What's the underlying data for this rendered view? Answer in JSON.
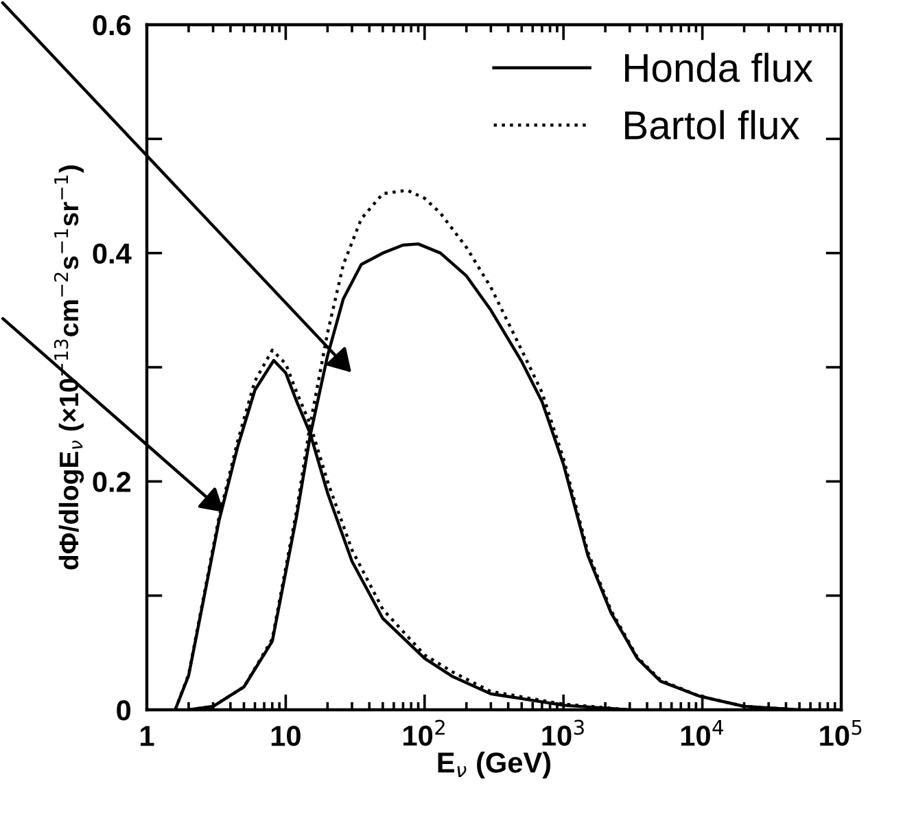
{
  "chart_data": {
    "type": "line",
    "xlabel": "E$_{ν}$ (GeV)",
    "ylabel": "dΦ/dlogE$_{ν}$ (×10$^{−13}$cm$^{−2}$s$^{−1}$sr$^{−1}$)",
    "log": "x",
    "xlim": [
      1,
      100000
    ],
    "ylim": [
      0,
      0.6
    ],
    "xticks": [
      1,
      10,
      {
        "value": 100,
        "label": "10$^{2}$"
      },
      {
        "value": 1000,
        "label": "10$^{3}$"
      },
      {
        "value": 10000,
        "label": "10$^{4}$"
      },
      {
        "value": 100000,
        "label": "10$^{5}$"
      }
    ],
    "yticks": [
      0,
      {
        "value": 0.1,
        "label": null
      },
      0.2,
      {
        "value": 0.3,
        "label": null
      },
      0.4,
      {
        "value": 0.5,
        "label": null
      },
      0.6
    ],
    "grid": false,
    "legend": "top right",
    "marker": "none",
    "series": [
      {
        "name": "Honda flux",
        "color": "#000000",
        "line_style": "solid",
        "x": [
          2,
          3,
          5,
          8,
          12,
          15,
          20,
          26,
          35,
          50,
          70,
          90,
          130,
          200,
          300,
          500,
          700,
          1000,
          1500,
          2200,
          3400,
          5000,
          9500,
          20000,
          50000
        ],
        "values": [
          0,
          0.003,
          0.02,
          0.06,
          0.17,
          0.24,
          0.31,
          0.36,
          0.39,
          0.4,
          0.407,
          0.408,
          0.4,
          0.38,
          0.35,
          0.305,
          0.27,
          0.215,
          0.135,
          0.085,
          0.045,
          0.025,
          0.012,
          0.003,
          0
        ]
      },
      {
        "name": "Bartol flux",
        "color": "#000000",
        "line_style": "dotted",
        "x": [
          2,
          3,
          5,
          8,
          12,
          15,
          20,
          26,
          35,
          50,
          75,
          100,
          130,
          200,
          300,
          500,
          700,
          1000,
          1500,
          2200,
          3400,
          5000,
          9500,
          20000,
          50000
        ],
        "values": [
          0,
          0.003,
          0.02,
          0.062,
          0.175,
          0.25,
          0.33,
          0.39,
          0.43,
          0.452,
          0.455,
          0.448,
          0.435,
          0.405,
          0.37,
          0.315,
          0.278,
          0.22,
          0.138,
          0.087,
          0.046,
          0.026,
          0.012,
          0.003,
          0
        ]
      },
      {
        "color": "#000000",
        "line_style": "solid",
        "x": [
          1.6,
          2,
          2.5,
          3.3,
          4.5,
          6,
          8.2,
          10,
          12,
          15,
          20,
          30,
          50,
          100,
          160,
          300,
          1000,
          3000
        ],
        "values": [
          0,
          0.03,
          0.09,
          0.165,
          0.23,
          0.28,
          0.306,
          0.295,
          0.27,
          0.242,
          0.19,
          0.13,
          0.08,
          0.045,
          0.029,
          0.014,
          0.004,
          0
        ]
      },
      {
        "color": "#000000",
        "line_style": "dotted",
        "x": [
          1.6,
          2,
          2.5,
          3.3,
          4.5,
          6,
          8,
          10,
          12,
          15,
          20,
          30,
          50,
          100,
          160,
          300,
          1000,
          3000
        ],
        "values": [
          0,
          0.031,
          0.092,
          0.168,
          0.235,
          0.288,
          0.315,
          0.303,
          0.278,
          0.25,
          0.2,
          0.14,
          0.088,
          0.048,
          0.033,
          0.016,
          0.005,
          0
        ]
      }
    ]
  }
}
